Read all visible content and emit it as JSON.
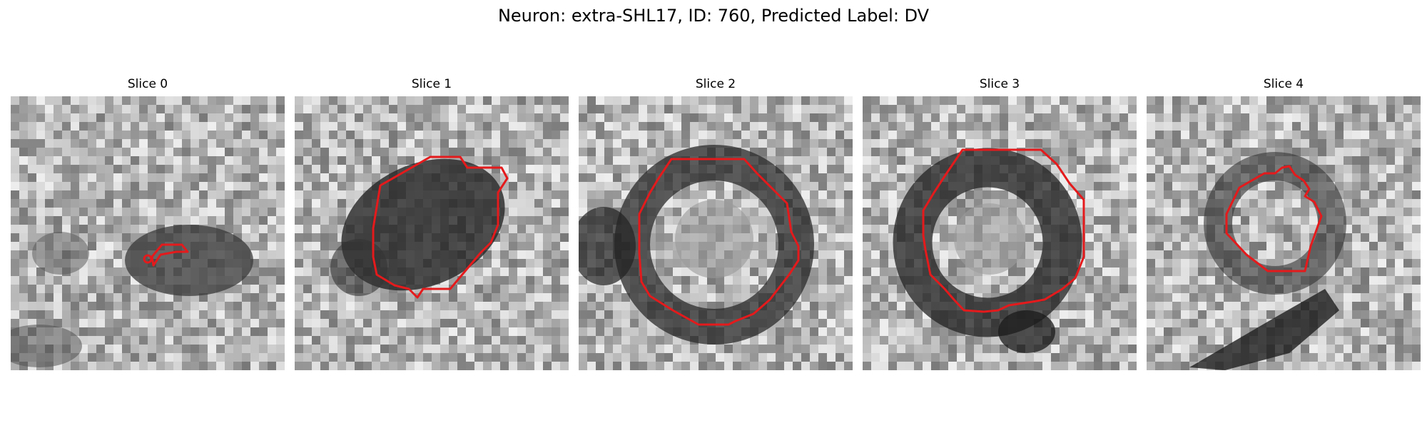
{
  "figure": {
    "title": "Neuron: extra-SHL17, ID: 760, Predicted Label: DV",
    "contour_color": "#e41a1c"
  },
  "slices": [
    {
      "title": "Slice 0"
    },
    {
      "title": "Slice 1"
    },
    {
      "title": "Slice 2"
    },
    {
      "title": "Slice 3"
    },
    {
      "title": "Slice 4"
    }
  ]
}
